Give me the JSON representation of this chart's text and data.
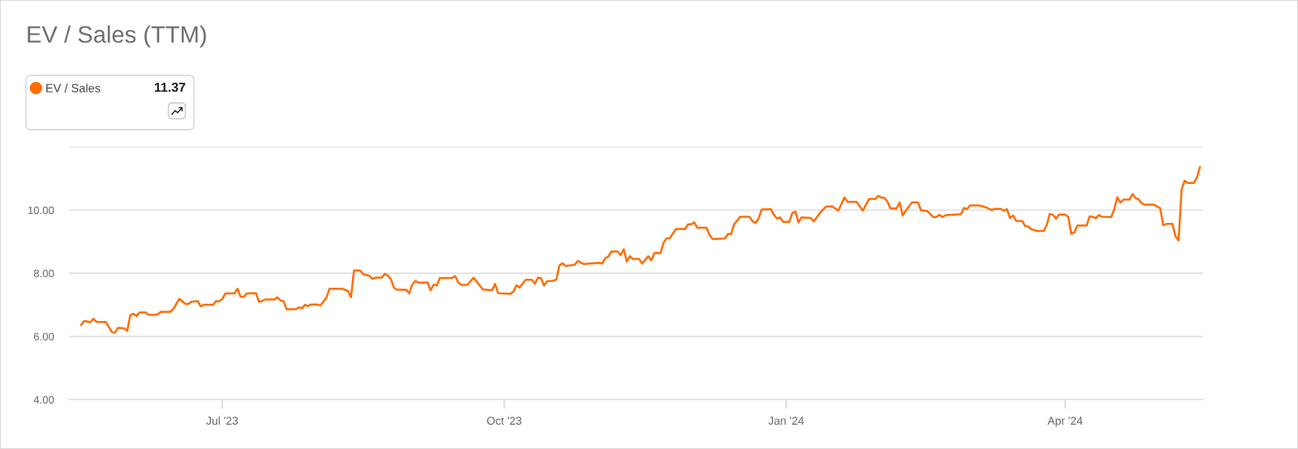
{
  "chart_data": {
    "type": "line",
    "title": "EV / Sales (TTM)",
    "annotations": [
      "11.37"
    ],
    "x": [
      "2023-05-16",
      "2023-05-17",
      "2023-05-19",
      "2023-05-20",
      "2023-05-21",
      "2023-05-24",
      "2023-05-26",
      "2023-05-27",
      "2023-05-28",
      "2023-05-30",
      "2023-05-31",
      "2023-06-01",
      "2023-06-02",
      "2023-06-03",
      "2023-06-04",
      "2023-06-06",
      "2023-06-07",
      "2023-06-09",
      "2023-06-10",
      "2023-06-11",
      "2023-06-14",
      "2023-06-15",
      "2023-06-17",
      "2023-06-19",
      "2023-06-20",
      "2023-06-21",
      "2023-06-23",
      "2023-06-24",
      "2023-06-25",
      "2023-06-28",
      "2023-06-29",
      "2023-06-30",
      "2023-07-01",
      "2023-07-02",
      "2023-07-05",
      "2023-07-06",
      "2023-07-07",
      "2023-07-08",
      "2023-07-09",
      "2023-07-12",
      "2023-07-13",
      "2023-07-14",
      "2023-07-15",
      "2023-07-18",
      "2023-07-19",
      "2023-07-20",
      "2023-07-21",
      "2023-07-22",
      "2023-07-25",
      "2023-07-26",
      "2023-07-27",
      "2023-07-28",
      "2023-07-29",
      "2023-07-30",
      "2023-08-01",
      "2023-08-02",
      "2023-08-04",
      "2023-08-05",
      "2023-08-09",
      "2023-08-11",
      "2023-08-12",
      "2023-08-13",
      "2023-08-15",
      "2023-08-16",
      "2023-08-18",
      "2023-08-19",
      "2023-08-20",
      "2023-08-22",
      "2023-08-23",
      "2023-08-24",
      "2023-08-25",
      "2023-08-26",
      "2023-08-27",
      "2023-08-30",
      "2023-08-31",
      "2023-09-01",
      "2023-09-02",
      "2023-09-03",
      "2023-09-06",
      "2023-09-07",
      "2023-09-08",
      "2023-09-09",
      "2023-09-10",
      "2023-09-14",
      "2023-09-15",
      "2023-09-16",
      "2023-09-17",
      "2023-09-19",
      "2023-09-21",
      "2023-09-24",
      "2023-09-27",
      "2023-09-28",
      "2023-09-29",
      "2023-10-03",
      "2023-10-04",
      "2023-10-05",
      "2023-10-06",
      "2023-10-08",
      "2023-10-10",
      "2023-10-11",
      "2023-10-12",
      "2023-10-13",
      "2023-10-14",
      "2023-10-15",
      "2023-10-17",
      "2023-10-18",
      "2023-10-19",
      "2023-10-20",
      "2023-10-21",
      "2023-10-24",
      "2023-10-25",
      "2023-10-27",
      "2023-11-01",
      "2023-11-02",
      "2023-11-03",
      "2023-11-04",
      "2023-11-05",
      "2023-11-07",
      "2023-11-08",
      "2023-11-09",
      "2023-11-10",
      "2023-11-11",
      "2023-11-12",
      "2023-11-14",
      "2023-11-15",
      "2023-11-17",
      "2023-11-18",
      "2023-11-19",
      "2023-11-21",
      "2023-11-22",
      "2023-11-23",
      "2023-11-24",
      "2023-11-26",
      "2023-11-29",
      "2023-11-30",
      "2023-12-01",
      "2023-12-02",
      "2023-12-03",
      "2023-12-06",
      "2023-12-07",
      "2023-12-08",
      "2023-12-12",
      "2023-12-13",
      "2023-12-14",
      "2023-12-15",
      "2023-12-17",
      "2023-12-20",
      "2023-12-21",
      "2023-12-22",
      "2023-12-23",
      "2023-12-24",
      "2023-12-27",
      "2023-12-28",
      "2023-12-29",
      "2023-12-30",
      "2023-12-31",
      "2024-01-02",
      "2024-01-03",
      "2024-01-04",
      "2024-01-05",
      "2024-01-06",
      "2024-01-09",
      "2024-01-10",
      "2024-01-12",
      "2024-01-14",
      "2024-01-16",
      "2024-01-18",
      "2024-01-20",
      "2024-01-21",
      "2024-01-24",
      "2024-01-26",
      "2024-01-28",
      "2024-01-30",
      "2024-01-31",
      "2024-02-01",
      "2024-02-02",
      "2024-02-03",
      "2024-02-04",
      "2024-02-06",
      "2024-02-07",
      "2024-02-08",
      "2024-02-09",
      "2024-02-11",
      "2024-02-13",
      "2024-02-14",
      "2024-02-16",
      "2024-02-18",
      "2024-02-19",
      "2024-02-20",
      "2024-02-21",
      "2024-02-22",
      "2024-02-27",
      "2024-02-28",
      "2024-02-29",
      "2024-03-01",
      "2024-03-04",
      "2024-03-06",
      "2024-03-08",
      "2024-03-09",
      "2024-03-11",
      "2024-03-12",
      "2024-03-13",
      "2024-03-14",
      "2024-03-15",
      "2024-03-16",
      "2024-03-18",
      "2024-03-19",
      "2024-03-20",
      "2024-03-21",
      "2024-03-23",
      "2024-03-25",
      "2024-03-26",
      "2024-03-27",
      "2024-03-28",
      "2024-03-29",
      "2024-03-30",
      "2024-04-01",
      "2024-04-02",
      "2024-04-03",
      "2024-04-04",
      "2024-04-05",
      "2024-04-08",
      "2024-04-09",
      "2024-04-10",
      "2024-04-11",
      "2024-04-12",
      "2024-04-13",
      "2024-04-16",
      "2024-04-17",
      "2024-04-18",
      "2024-04-19",
      "2024-04-20",
      "2024-04-22",
      "2024-04-23",
      "2024-04-24",
      "2024-04-25",
      "2024-04-26",
      "2024-04-27",
      "2024-04-30",
      "2024-05-02",
      "2024-05-03",
      "2024-05-04",
      "2024-05-06",
      "2024-05-07",
      "2024-05-08",
      "2024-05-09",
      "2024-05-10",
      "2024-05-11",
      "2024-05-13",
      "2024-05-14",
      "2024-05-15"
    ],
    "series": [
      {
        "name": "EV / Sales",
        "color": "#ff6d00",
        "values": [
          6.37,
          6.49,
          6.45,
          6.56,
          6.46,
          6.46,
          6.14,
          6.12,
          6.27,
          6.26,
          6.17,
          6.67,
          6.72,
          6.64,
          6.76,
          6.76,
          6.68,
          6.69,
          6.7,
          6.78,
          6.78,
          6.86,
          7.19,
          7.03,
          7.03,
          7.1,
          7.12,
          6.95,
          7.0,
          7.0,
          7.12,
          7.11,
          7.18,
          7.36,
          7.36,
          7.51,
          7.25,
          7.25,
          7.36,
          7.37,
          7.1,
          7.12,
          7.17,
          7.17,
          7.24,
          7.14,
          7.12,
          6.86,
          6.86,
          6.92,
          6.89,
          7.0,
          6.96,
          7.01,
          7.01,
          6.98,
          7.23,
          7.51,
          7.51,
          7.44,
          7.24,
          8.09,
          8.09,
          7.97,
          7.92,
          7.82,
          7.86,
          7.86,
          7.98,
          7.93,
          7.82,
          7.55,
          7.48,
          7.48,
          7.36,
          7.64,
          7.76,
          7.7,
          7.71,
          7.46,
          7.64,
          7.61,
          7.85,
          7.85,
          7.91,
          7.71,
          7.63,
          7.63,
          7.86,
          7.49,
          7.46,
          7.66,
          7.37,
          7.35,
          7.41,
          7.62,
          7.55,
          7.79,
          7.79,
          7.67,
          7.86,
          7.85,
          7.61,
          7.75,
          7.76,
          7.8,
          8.24,
          8.32,
          8.23,
          8.27,
          8.39,
          8.29,
          8.33,
          8.31,
          8.48,
          8.53,
          8.69,
          8.69,
          8.57,
          8.76,
          8.37,
          8.54,
          8.45,
          8.45,
          8.31,
          8.54,
          8.41,
          8.64,
          8.64,
          8.97,
          9.11,
          9.11,
          9.4,
          9.4,
          9.55,
          9.55,
          9.61,
          9.44,
          9.44,
          9.21,
          9.08,
          9.1,
          9.24,
          9.24,
          9.55,
          9.79,
          9.79,
          9.65,
          9.59,
          9.74,
          10.02,
          10.03,
          9.85,
          9.73,
          9.77,
          9.63,
          9.63,
          9.91,
          9.95,
          9.61,
          9.77,
          9.75,
          9.64,
          9.91,
          10.11,
          10.12,
          9.98,
          10.4,
          10.26,
          10.26,
          9.98,
          10.35,
          10.35,
          10.45,
          10.4,
          10.39,
          10.27,
          10.05,
          10.05,
          10.24,
          9.83,
          9.98,
          10.24,
          10.24,
          9.99,
          9.97,
          9.78,
          9.78,
          9.85,
          9.78,
          9.84,
          9.87,
          10.07,
          10.03,
          10.15,
          10.15,
          10.09,
          10.0,
          10.04,
          10.04,
          9.98,
          10.03,
          9.75,
          9.83,
          9.66,
          9.65,
          9.49,
          9.48,
          9.39,
          9.34,
          9.34,
          9.53,
          9.88,
          9.85,
          9.73,
          9.86,
          9.86,
          9.79,
          9.25,
          9.29,
          9.51,
          9.51,
          9.8,
          9.79,
          9.74,
          9.84,
          9.79,
          9.78,
          10.02,
          10.41,
          10.24,
          10.33,
          10.33,
          10.51,
          10.38,
          10.34,
          10.21,
          10.17,
          10.17,
          10.06,
          9.52,
          9.56,
          9.56,
          9.17,
          9.04,
          10.66,
          10.93,
          10.86,
          10.86,
          11.03,
          11.37
        ]
      }
    ],
    "xlim": [
      "2023-05-12",
      "2024-05-16"
    ],
    "xticks": [
      {
        "value": "2023-07-01",
        "label": "Jul '23"
      },
      {
        "value": "2023-10-01",
        "label": "Oct '23"
      },
      {
        "value": "2024-01-01",
        "label": "Jan '24"
      },
      {
        "value": "2024-04-01",
        "label": "Apr '24"
      }
    ],
    "ylim": [
      4,
      12
    ],
    "yticks": [
      {
        "value": 4,
        "label": "4.00"
      },
      {
        "value": 6,
        "label": "6.00"
      },
      {
        "value": 8,
        "label": "8.00"
      },
      {
        "value": 10,
        "label": "10.00"
      },
      {
        "value": 12,
        "label": null
      }
    ],
    "grid": "y",
    "legend": "top left"
  }
}
